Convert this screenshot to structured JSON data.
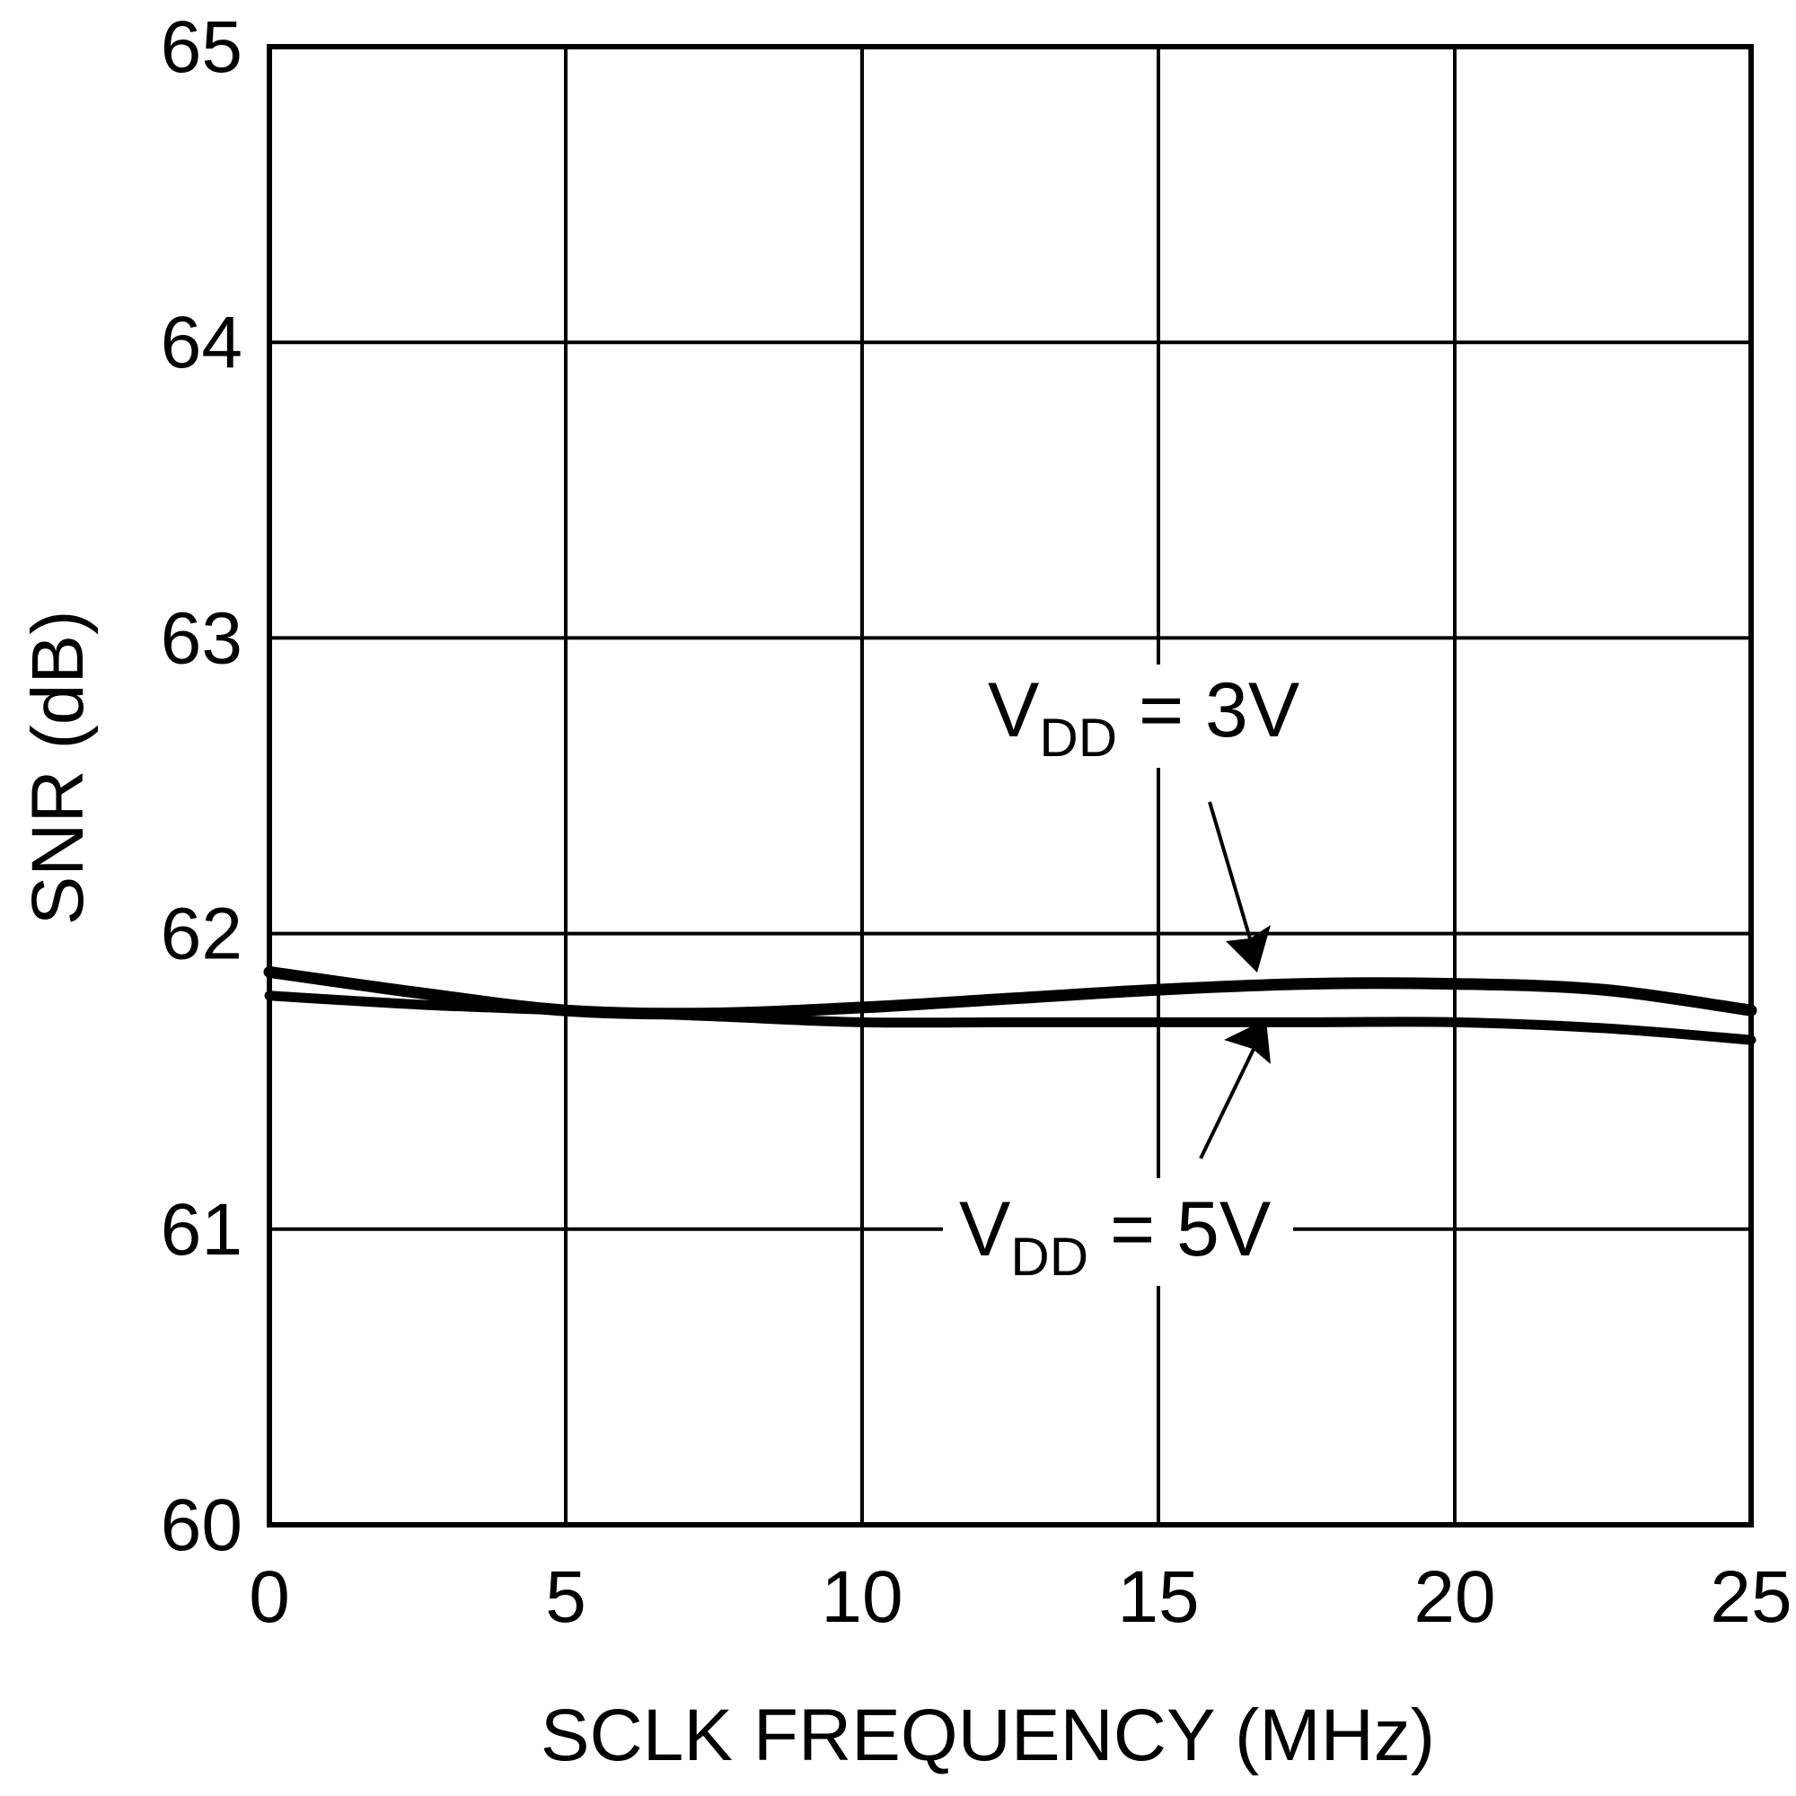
{
  "chart_data": {
    "type": "line",
    "xlabel": "SCLK FREQUENCY (MHz)",
    "ylabel": "SNR (dB)",
    "xlim": [
      0,
      25
    ],
    "ylim": [
      60,
      65
    ],
    "xticks": [
      "0",
      "5",
      "10",
      "15",
      "20",
      "25"
    ],
    "yticks": [
      "60",
      "61",
      "62",
      "63",
      "64",
      "65"
    ],
    "grid": true,
    "series": [
      {
        "name": "VDD = 3V",
        "x": [
          0,
          2.5,
          5,
          7.5,
          10,
          12.5,
          15,
          17.5,
          20,
          22.5,
          25
        ],
        "y": [
          61.87,
          61.8,
          61.74,
          61.73,
          61.75,
          61.78,
          61.81,
          61.83,
          61.83,
          61.81,
          61.74
        ]
      },
      {
        "name": "VDD = 5V",
        "x": [
          0,
          2.5,
          5,
          7.5,
          10,
          12.5,
          15,
          17.5,
          20,
          22.5,
          25
        ],
        "y": [
          61.79,
          61.76,
          61.74,
          61.72,
          61.7,
          61.7,
          61.7,
          61.7,
          61.7,
          61.68,
          61.64
        ]
      }
    ],
    "annotations": [
      {
        "label": "V",
        "subscript": "DD",
        "suffix": " = 3V",
        "series": 0
      },
      {
        "label": "V",
        "subscript": "DD",
        "suffix": " = 5V",
        "series": 1
      }
    ]
  }
}
